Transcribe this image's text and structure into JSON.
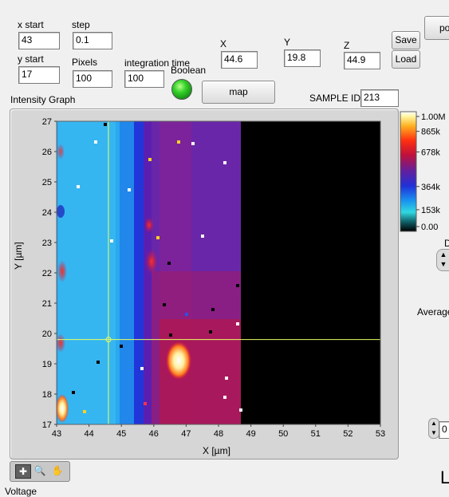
{
  "controls": {
    "x_start_label": "x start",
    "x_start_value": "43",
    "y_start_label": "y start",
    "y_start_value": "17",
    "step_label": "step",
    "step_value": "0.1",
    "pixels_label": "Pixels",
    "pixels_value": "100",
    "integration_label": "integration time",
    "integration_value": "100",
    "boolean_label": "Boolean",
    "map_label": "map",
    "x_label": "X",
    "x_value": "44.6",
    "y_label": "Y",
    "y_value": "19.8",
    "z_label": "Z",
    "z_value": "44.9",
    "save_label": "Save",
    "load_label": "Load",
    "cut_button_label": "po",
    "sample_id_label": "SAMPLE ID",
    "sample_id_value": "213"
  },
  "graph": {
    "title": "Intensity Graph",
    "xlabel": "X [µm]",
    "ylabel": "Y [µm]",
    "xlim": [
      43,
      53
    ],
    "ylim": [
      17,
      27
    ],
    "x_ticks": [
      "43",
      "44",
      "45",
      "46",
      "47",
      "48",
      "49",
      "50",
      "51",
      "52",
      "53"
    ],
    "y_ticks": [
      "17",
      "18",
      "19",
      "20",
      "21",
      "22",
      "23",
      "24",
      "25",
      "26",
      "27"
    ],
    "cursor": {
      "x": 44.6,
      "y": 19.8
    },
    "colorbar_ticks": [
      "1.00M",
      "865k",
      "678k",
      "364k",
      "153k",
      "0.00"
    ],
    "colorbar_values": [
      1000000,
      865000,
      678000,
      364000,
      153000,
      0
    ],
    "data_extent_x": 48.7
  },
  "side": {
    "partial_label_d": "D",
    "partial_label_average": "Average",
    "partial_field_value": "0",
    "partial_label_l": "L"
  },
  "bottom": {
    "voltage_label": "Voltage"
  }
}
